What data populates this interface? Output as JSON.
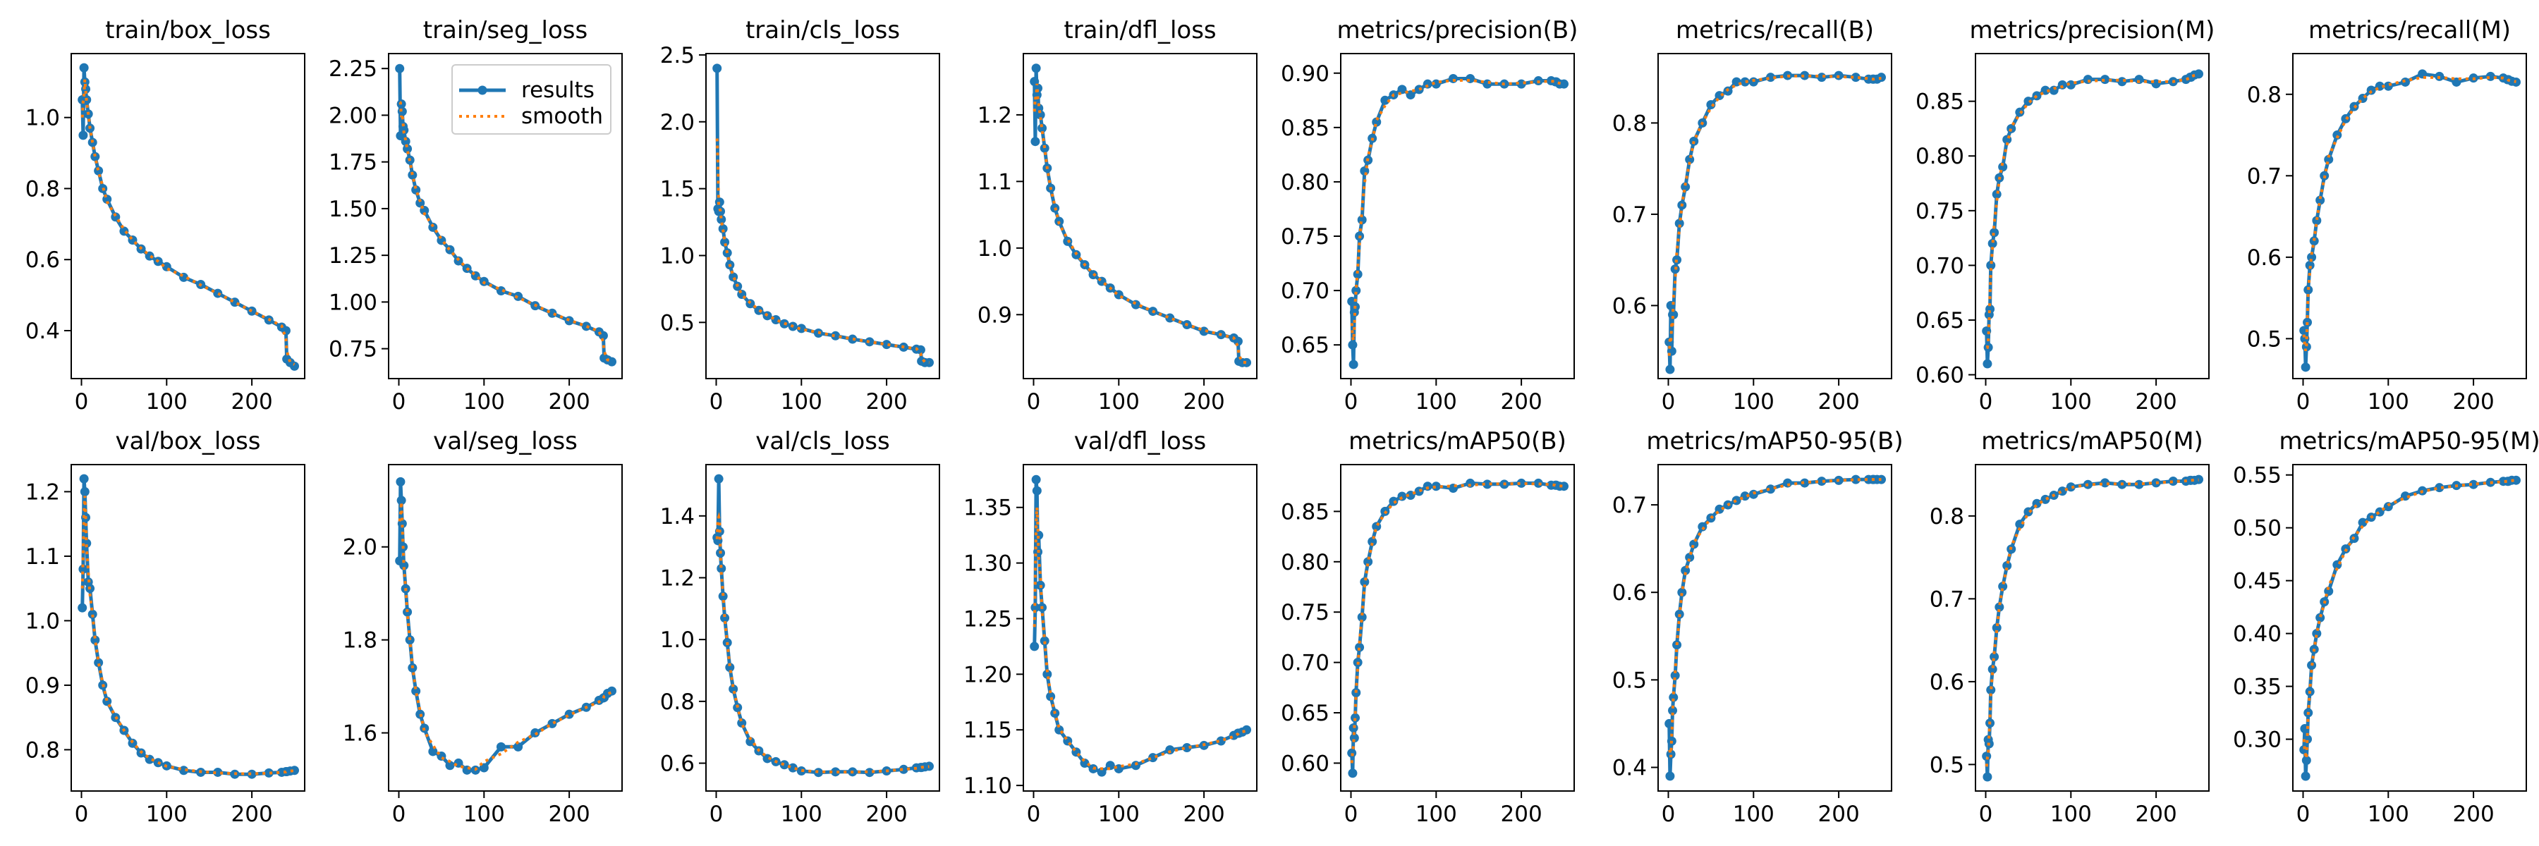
{
  "colors": {
    "results": "#1f77b4",
    "smooth": "#ff7f0e"
  },
  "chart_data": [
    {
      "type": "line",
      "title": "train/box_loss",
      "xlim": [
        -12,
        262
      ],
      "ylim": [
        0.265,
        1.18
      ],
      "xticks": [
        "0",
        "100",
        "200"
      ],
      "yticks": [
        "0.4",
        "0.6",
        "0.8",
        "1.0"
      ],
      "x": [
        1,
        2,
        3,
        4,
        5,
        6,
        8,
        10,
        13,
        16,
        20,
        25,
        30,
        40,
        50,
        60,
        70,
        80,
        90,
        100,
        120,
        140,
        160,
        180,
        200,
        220,
        235,
        240,
        241,
        245,
        250
      ],
      "y": [
        1.05,
        0.95,
        1.14,
        1.1,
        1.08,
        1.05,
        1.01,
        0.97,
        0.93,
        0.89,
        0.85,
        0.8,
        0.77,
        0.72,
        0.68,
        0.655,
        0.63,
        0.61,
        0.595,
        0.58,
        0.55,
        0.53,
        0.505,
        0.48,
        0.455,
        0.43,
        0.41,
        0.4,
        0.32,
        0.31,
        0.3
      ]
    },
    {
      "type": "line",
      "title": "train/seg_loss",
      "xlim": [
        -12,
        262
      ],
      "ylim": [
        0.59,
        2.33
      ],
      "xticks": [
        "0",
        "100",
        "200"
      ],
      "yticks": [
        "0.75",
        "1.00",
        "1.25",
        "1.50",
        "1.75",
        "2.00",
        "2.25"
      ],
      "legend": {
        "placement": "upper right",
        "entries": [
          "results",
          "smooth"
        ]
      },
      "x": [
        1,
        2,
        3,
        4,
        5,
        6,
        8,
        10,
        13,
        16,
        20,
        25,
        30,
        40,
        50,
        60,
        70,
        80,
        90,
        100,
        120,
        140,
        160,
        180,
        200,
        220,
        235,
        240,
        241,
        245,
        250
      ],
      "y": [
        2.25,
        1.89,
        2.06,
        2.02,
        1.94,
        1.92,
        1.86,
        1.82,
        1.76,
        1.68,
        1.6,
        1.53,
        1.49,
        1.4,
        1.33,
        1.28,
        1.22,
        1.18,
        1.14,
        1.11,
        1.06,
        1.03,
        0.98,
        0.94,
        0.9,
        0.87,
        0.84,
        0.82,
        0.7,
        0.69,
        0.68
      ]
    },
    {
      "type": "line",
      "title": "train/cls_loss",
      "xlim": [
        -12,
        262
      ],
      "ylim": [
        0.08,
        2.51
      ],
      "xticks": [
        "0",
        "100",
        "200"
      ],
      "yticks": [
        "0.5",
        "1.0",
        "1.5",
        "2.0",
        "2.5"
      ],
      "x": [
        1,
        2,
        3,
        4,
        5,
        6,
        8,
        10,
        13,
        16,
        20,
        25,
        30,
        40,
        50,
        60,
        70,
        80,
        90,
        100,
        120,
        140,
        160,
        180,
        200,
        220,
        235,
        240,
        241,
        245,
        250
      ],
      "y": [
        2.4,
        1.35,
        1.33,
        1.4,
        1.33,
        1.27,
        1.2,
        1.1,
        1.02,
        0.93,
        0.84,
        0.77,
        0.71,
        0.64,
        0.59,
        0.55,
        0.52,
        0.49,
        0.47,
        0.455,
        0.42,
        0.4,
        0.375,
        0.355,
        0.335,
        0.315,
        0.3,
        0.295,
        0.21,
        0.2,
        0.2
      ]
    },
    {
      "type": "line",
      "title": "train/dfl_loss",
      "xlim": [
        -12,
        262
      ],
      "ylim": [
        0.804,
        1.292
      ],
      "xticks": [
        "0",
        "100",
        "200"
      ],
      "yticks": [
        "0.9",
        "1.0",
        "1.1",
        "1.2"
      ],
      "x": [
        1,
        2,
        3,
        4,
        5,
        6,
        8,
        10,
        13,
        16,
        20,
        25,
        30,
        40,
        50,
        60,
        70,
        80,
        90,
        100,
        120,
        140,
        160,
        180,
        200,
        220,
        235,
        240,
        241,
        245,
        250
      ],
      "y": [
        1.25,
        1.16,
        1.27,
        1.23,
        1.24,
        1.21,
        1.2,
        1.18,
        1.15,
        1.12,
        1.09,
        1.06,
        1.04,
        1.01,
        0.99,
        0.975,
        0.96,
        0.95,
        0.94,
        0.93,
        0.915,
        0.905,
        0.895,
        0.885,
        0.875,
        0.87,
        0.865,
        0.86,
        0.83,
        0.828,
        0.828
      ]
    },
    {
      "type": "line",
      "title": "metrics/precision(B)",
      "xlim": [
        -12,
        262
      ],
      "ylim": [
        0.619,
        0.918
      ],
      "xticks": [
        "0",
        "100",
        "200"
      ],
      "yticks": [
        "0.65",
        "0.70",
        "0.75",
        "0.80",
        "0.85",
        "0.90"
      ],
      "x": [
        1,
        2,
        3,
        4,
        5,
        6,
        8,
        10,
        13,
        16,
        20,
        25,
        30,
        40,
        50,
        60,
        70,
        80,
        90,
        100,
        120,
        140,
        160,
        180,
        200,
        220,
        235,
        240,
        241,
        245,
        250
      ],
      "y": [
        0.69,
        0.65,
        0.632,
        0.68,
        0.685,
        0.7,
        0.715,
        0.75,
        0.765,
        0.81,
        0.82,
        0.84,
        0.855,
        0.875,
        0.88,
        0.885,
        0.88,
        0.885,
        0.89,
        0.89,
        0.895,
        0.895,
        0.89,
        0.89,
        0.89,
        0.893,
        0.893,
        0.892,
        0.892,
        0.89,
        0.89
      ]
    },
    {
      "type": "line",
      "title": "metrics/recall(B)",
      "xlim": [
        -12,
        262
      ],
      "ylim": [
        0.52,
        0.876
      ],
      "xticks": [
        "0",
        "100",
        "200"
      ],
      "yticks": [
        "0.6",
        "0.7",
        "0.8"
      ],
      "x": [
        1,
        2,
        3,
        4,
        5,
        6,
        8,
        10,
        13,
        16,
        20,
        25,
        30,
        40,
        50,
        60,
        70,
        80,
        90,
        100,
        120,
        140,
        160,
        180,
        200,
        220,
        235,
        240,
        241,
        245,
        250
      ],
      "y": [
        0.56,
        0.53,
        0.6,
        0.55,
        0.59,
        0.59,
        0.64,
        0.65,
        0.69,
        0.71,
        0.73,
        0.76,
        0.78,
        0.8,
        0.82,
        0.83,
        0.835,
        0.845,
        0.845,
        0.845,
        0.85,
        0.852,
        0.852,
        0.85,
        0.852,
        0.85,
        0.848,
        0.848,
        0.848,
        0.848,
        0.85
      ]
    },
    {
      "type": "line",
      "title": "metrics/precision(M)",
      "xlim": [
        -12,
        262
      ],
      "ylim": [
        0.5965,
        0.8936
      ],
      "xticks": [
        "0",
        "100",
        "200"
      ],
      "yticks": [
        "0.60",
        "0.65",
        "0.70",
        "0.75",
        "0.80",
        "0.85"
      ],
      "x": [
        1,
        2,
        3,
        4,
        5,
        6,
        8,
        10,
        13,
        16,
        20,
        25,
        30,
        40,
        50,
        60,
        70,
        80,
        90,
        100,
        120,
        140,
        160,
        180,
        200,
        220,
        235,
        240,
        241,
        245,
        250
      ],
      "y": [
        0.64,
        0.61,
        0.625,
        0.655,
        0.66,
        0.7,
        0.72,
        0.73,
        0.765,
        0.78,
        0.79,
        0.815,
        0.825,
        0.84,
        0.85,
        0.855,
        0.86,
        0.86,
        0.865,
        0.865,
        0.87,
        0.87,
        0.868,
        0.87,
        0.866,
        0.868,
        0.87,
        0.872,
        0.872,
        0.874,
        0.875
      ]
    },
    {
      "type": "line",
      "title": "metrics/recall(M)",
      "xlim": [
        -12,
        262
      ],
      "ylim": [
        0.451,
        0.85
      ],
      "xticks": [
        "0",
        "100",
        "200"
      ],
      "yticks": [
        "0.5",
        "0.6",
        "0.7",
        "0.8"
      ],
      "x": [
        1,
        2,
        3,
        4,
        5,
        6,
        8,
        10,
        13,
        16,
        20,
        25,
        30,
        40,
        50,
        60,
        70,
        80,
        90,
        100,
        120,
        140,
        160,
        180,
        200,
        220,
        235,
        240,
        241,
        245,
        250
      ],
      "y": [
        0.51,
        0.5,
        0.465,
        0.49,
        0.52,
        0.56,
        0.59,
        0.6,
        0.62,
        0.645,
        0.67,
        0.7,
        0.72,
        0.75,
        0.77,
        0.785,
        0.795,
        0.805,
        0.81,
        0.81,
        0.815,
        0.825,
        0.822,
        0.815,
        0.82,
        0.822,
        0.82,
        0.818,
        0.818,
        0.816,
        0.815
      ]
    },
    {
      "type": "line",
      "title": "val/box_loss",
      "xlim": [
        -12,
        262
      ],
      "ylim": [
        0.736,
        1.242
      ],
      "xticks": [
        "0",
        "100",
        "200"
      ],
      "yticks": [
        "0.8",
        "0.9",
        "1.0",
        "1.1",
        "1.2"
      ],
      "x": [
        1,
        2,
        3,
        4,
        5,
        6,
        8,
        10,
        13,
        16,
        20,
        25,
        30,
        40,
        50,
        60,
        70,
        80,
        90,
        100,
        120,
        140,
        160,
        180,
        200,
        220,
        235,
        240,
        241,
        245,
        250
      ],
      "y": [
        1.02,
        1.08,
        1.22,
        1.2,
        1.16,
        1.12,
        1.06,
        1.05,
        1.01,
        0.97,
        0.935,
        0.9,
        0.875,
        0.85,
        0.83,
        0.81,
        0.795,
        0.785,
        0.78,
        0.775,
        0.768,
        0.765,
        0.765,
        0.762,
        0.762,
        0.764,
        0.765,
        0.766,
        0.766,
        0.767,
        0.768
      ]
    },
    {
      "type": "line",
      "title": "val/seg_loss",
      "xlim": [
        -12,
        262
      ],
      "ylim": [
        1.475,
        2.177
      ],
      "xticks": [
        "0",
        "100",
        "200"
      ],
      "yticks": [
        "1.6",
        "1.8",
        "2.0"
      ],
      "x": [
        1,
        2,
        3,
        4,
        5,
        6,
        8,
        10,
        13,
        16,
        20,
        25,
        30,
        40,
        50,
        60,
        70,
        80,
        90,
        100,
        120,
        140,
        160,
        180,
        200,
        220,
        235,
        240,
        241,
        245,
        250
      ],
      "y": [
        1.97,
        2.14,
        2.1,
        2.05,
        2.0,
        1.96,
        1.91,
        1.86,
        1.8,
        1.74,
        1.69,
        1.64,
        1.61,
        1.56,
        1.55,
        1.53,
        1.535,
        1.52,
        1.52,
        1.525,
        1.57,
        1.57,
        1.6,
        1.62,
        1.64,
        1.655,
        1.67,
        1.675,
        1.676,
        1.685,
        1.69
      ]
    },
    {
      "type": "line",
      "title": "val/cls_loss",
      "xlim": [
        -12,
        262
      ],
      "ylim": [
        0.51,
        1.566
      ],
      "xticks": [
        "0",
        "100",
        "200"
      ],
      "yticks": [
        "0.6",
        "0.8",
        "1.0",
        "1.2",
        "1.4"
      ],
      "x": [
        1,
        2,
        3,
        4,
        5,
        6,
        8,
        10,
        13,
        16,
        20,
        25,
        30,
        40,
        50,
        60,
        70,
        80,
        90,
        100,
        120,
        140,
        160,
        180,
        200,
        220,
        235,
        240,
        241,
        245,
        250
      ],
      "y": [
        1.33,
        1.32,
        1.52,
        1.35,
        1.28,
        1.23,
        1.14,
        1.07,
        0.99,
        0.91,
        0.84,
        0.78,
        0.73,
        0.67,
        0.64,
        0.615,
        0.605,
        0.595,
        0.585,
        0.575,
        0.57,
        0.572,
        0.572,
        0.57,
        0.575,
        0.58,
        0.585,
        0.586,
        0.586,
        0.588,
        0.59
      ]
    },
    {
      "type": "line",
      "title": "val/dfl_loss",
      "xlim": [
        -12,
        262
      ],
      "ylim": [
        1.095,
        1.3885
      ],
      "xticks": [
        "0",
        "100",
        "200"
      ],
      "yticks": [
        "1.10",
        "1.15",
        "1.20",
        "1.25",
        "1.30",
        "1.35"
      ],
      "x": [
        1,
        2,
        3,
        4,
        5,
        6,
        8,
        10,
        13,
        16,
        20,
        25,
        30,
        40,
        50,
        60,
        70,
        80,
        90,
        100,
        120,
        140,
        160,
        180,
        200,
        220,
        235,
        240,
        241,
        245,
        250
      ],
      "y": [
        1.225,
        1.26,
        1.375,
        1.365,
        1.31,
        1.325,
        1.28,
        1.26,
        1.23,
        1.2,
        1.18,
        1.165,
        1.15,
        1.14,
        1.13,
        1.12,
        1.115,
        1.112,
        1.118,
        1.115,
        1.118,
        1.125,
        1.132,
        1.134,
        1.136,
        1.14,
        1.145,
        1.147,
        1.147,
        1.148,
        1.15
      ]
    },
    {
      "type": "line",
      "title": "metrics/mAP50(B)",
      "xlim": [
        -12,
        262
      ],
      "ylim": [
        0.5723,
        0.8965
      ],
      "xticks": [
        "0",
        "100",
        "200"
      ],
      "yticks": [
        "0.60",
        "0.65",
        "0.70",
        "0.75",
        "0.80",
        "0.85"
      ],
      "x": [
        1,
        2,
        3,
        4,
        5,
        6,
        8,
        10,
        13,
        16,
        20,
        25,
        30,
        40,
        50,
        60,
        70,
        80,
        90,
        100,
        120,
        140,
        160,
        180,
        200,
        220,
        235,
        240,
        241,
        245,
        250
      ],
      "y": [
        0.61,
        0.59,
        0.635,
        0.625,
        0.645,
        0.67,
        0.7,
        0.715,
        0.745,
        0.78,
        0.8,
        0.82,
        0.835,
        0.85,
        0.86,
        0.865,
        0.866,
        0.87,
        0.875,
        0.875,
        0.873,
        0.878,
        0.877,
        0.877,
        0.878,
        0.878,
        0.876,
        0.876,
        0.876,
        0.875,
        0.875
      ]
    },
    {
      "type": "line",
      "title": "metrics/mAP50-95(B)",
      "xlim": [
        -12,
        262
      ],
      "ylim": [
        0.373,
        0.746
      ],
      "xticks": [
        "0",
        "100",
        "200"
      ],
      "yticks": [
        "0.4",
        "0.5",
        "0.6",
        "0.7"
      ],
      "x": [
        1,
        2,
        3,
        4,
        5,
        6,
        8,
        10,
        13,
        16,
        20,
        25,
        30,
        40,
        50,
        60,
        70,
        80,
        90,
        100,
        120,
        140,
        160,
        180,
        200,
        220,
        235,
        240,
        241,
        245,
        250
      ],
      "y": [
        0.45,
        0.39,
        0.415,
        0.43,
        0.465,
        0.48,
        0.505,
        0.54,
        0.575,
        0.6,
        0.625,
        0.64,
        0.655,
        0.675,
        0.685,
        0.695,
        0.7,
        0.705,
        0.71,
        0.712,
        0.718,
        0.725,
        0.725,
        0.727,
        0.728,
        0.729,
        0.729,
        0.729,
        0.729,
        0.729,
        0.729
      ]
    },
    {
      "type": "line",
      "title": "metrics/mAP50(M)",
      "xlim": [
        -12,
        262
      ],
      "ylim": [
        0.468,
        0.862
      ],
      "xticks": [
        "0",
        "100",
        "200"
      ],
      "yticks": [
        "0.5",
        "0.6",
        "0.7",
        "0.8"
      ],
      "x": [
        1,
        2,
        3,
        4,
        5,
        6,
        8,
        10,
        13,
        16,
        20,
        25,
        30,
        40,
        50,
        60,
        70,
        80,
        90,
        100,
        120,
        140,
        160,
        180,
        200,
        220,
        235,
        240,
        241,
        245,
        250
      ],
      "y": [
        0.51,
        0.485,
        0.53,
        0.525,
        0.55,
        0.59,
        0.615,
        0.63,
        0.665,
        0.69,
        0.715,
        0.74,
        0.76,
        0.79,
        0.805,
        0.815,
        0.82,
        0.825,
        0.83,
        0.835,
        0.838,
        0.84,
        0.838,
        0.838,
        0.84,
        0.842,
        0.842,
        0.843,
        0.843,
        0.843,
        0.844
      ]
    },
    {
      "type": "line",
      "title": "metrics/mAP50-95(M)",
      "xlim": [
        -12,
        262
      ],
      "ylim": [
        0.251,
        0.5598
      ],
      "xticks": [
        "0",
        "100",
        "200"
      ],
      "yticks": [
        "0.30",
        "0.35",
        "0.40",
        "0.45",
        "0.50",
        "0.55"
      ],
      "x": [
        1,
        2,
        3,
        4,
        5,
        6,
        8,
        10,
        13,
        16,
        20,
        25,
        30,
        40,
        50,
        60,
        70,
        80,
        90,
        100,
        120,
        140,
        160,
        180,
        200,
        220,
        235,
        240,
        241,
        245,
        250
      ],
      "y": [
        0.29,
        0.31,
        0.265,
        0.28,
        0.3,
        0.325,
        0.345,
        0.37,
        0.385,
        0.4,
        0.415,
        0.43,
        0.44,
        0.465,
        0.48,
        0.49,
        0.505,
        0.51,
        0.515,
        0.52,
        0.53,
        0.535,
        0.538,
        0.54,
        0.541,
        0.543,
        0.544,
        0.544,
        0.544,
        0.545,
        0.545
      ]
    }
  ]
}
